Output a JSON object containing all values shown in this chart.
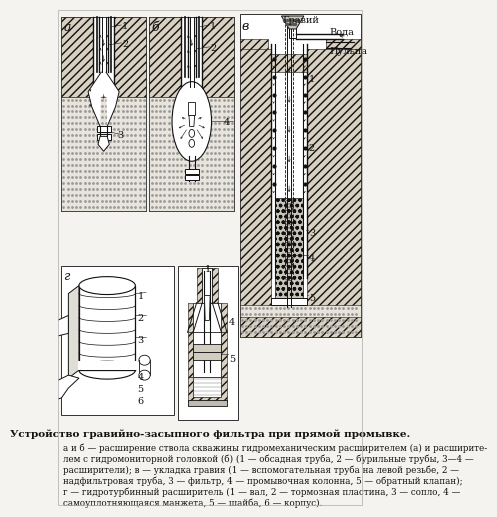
{
  "title": "Устройство гравийно-засыпного фильтра при прямой промывке.",
  "caption_lines": [
    "а и б — расширение ствола скважины гидромеханическим расширителем (а) и расширите-",
    "лем с гидромониторной головкой (б) (1 — обсадная труба, 2 — бурильные трубы, 3—4 —",
    "расширители); в — укладка гравия (1 — вспомогательная труба на левой резьбе, 2 —",
    "надфильтровая труба, 3 — фильтр, 4 — промывочная колонна, 5 — обратный клапан);",
    "г — гидротурбинный расширитель (1 — вал, 2 — тормозная пластина, 3 — сопло, 4 —",
    "самоуплотняющаяся манжета, 5 — шайба, 6 — корпус)."
  ],
  "bg_color": "#f5f3ef",
  "hatch_color": "#aaaaaa",
  "label_a": "а",
  "label_b": "б",
  "label_v": "в",
  "label_g": "г",
  "gravel_label": "Гравий",
  "water_label": "Вода",
  "pulpa_label": "Пульпа"
}
